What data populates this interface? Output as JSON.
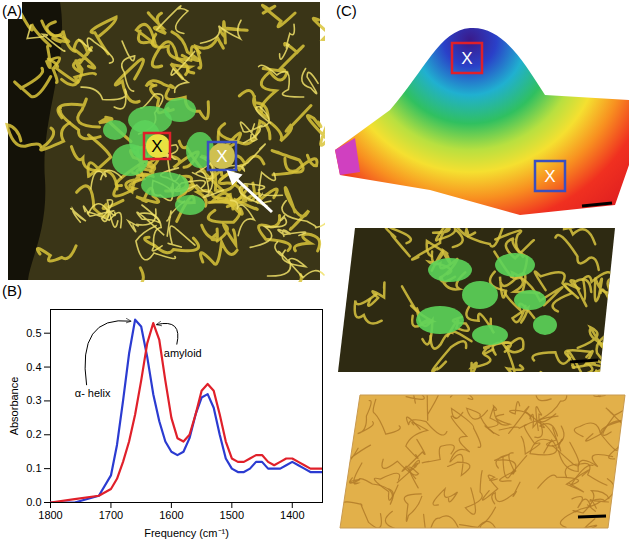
{
  "panel_A": {
    "label": "(A)",
    "markers": [
      {
        "text": "X",
        "color": "#e0202a"
      },
      {
        "text": "X",
        "color": "#3a4fc0"
      }
    ]
  },
  "chart_data": {
    "type": "line",
    "title": "(B)",
    "x_label": "Frequency (cm⁻¹)",
    "y_label": "Absorbance",
    "x": [
      1800,
      1760,
      1720,
      1700,
      1690,
      1680,
      1670,
      1660,
      1650,
      1640,
      1630,
      1620,
      1610,
      1600,
      1590,
      1580,
      1570,
      1560,
      1550,
      1540,
      1530,
      1520,
      1510,
      1500,
      1490,
      1480,
      1470,
      1460,
      1450,
      1440,
      1430,
      1420,
      1410,
      1400,
      1390,
      1380,
      1370,
      1360,
      1350
    ],
    "series": [
      {
        "name": "α- helix",
        "color": "#2b3bd1",
        "values": [
          0,
          0,
          0.02,
          0.08,
          0.17,
          0.3,
          0.44,
          0.54,
          0.52,
          0.43,
          0.32,
          0.24,
          0.18,
          0.15,
          0.14,
          0.15,
          0.19,
          0.26,
          0.31,
          0.32,
          0.28,
          0.2,
          0.13,
          0.1,
          0.09,
          0.09,
          0.1,
          0.12,
          0.12,
          0.1,
          0.1,
          0.1,
          0.11,
          0.12,
          0.11,
          0.1,
          0.09,
          0.09,
          0.09
        ]
      },
      {
        "name": "amyloid",
        "color": "#e0202a",
        "values": [
          0,
          0.01,
          0.02,
          0.04,
          0.07,
          0.12,
          0.18,
          0.26,
          0.36,
          0.47,
          0.53,
          0.48,
          0.36,
          0.25,
          0.19,
          0.18,
          0.2,
          0.26,
          0.33,
          0.35,
          0.33,
          0.26,
          0.18,
          0.13,
          0.12,
          0.12,
          0.13,
          0.14,
          0.14,
          0.12,
          0.11,
          0.12,
          0.13,
          0.13,
          0.12,
          0.11,
          0.1,
          0.1,
          0.1
        ]
      }
    ],
    "xlim": [
      1800,
      1350
    ],
    "xticks": [
      1800,
      1700,
      1600,
      1500,
      1400
    ],
    "ylim": [
      0,
      0.57
    ],
    "yticks": [
      {
        "value": 0,
        "label": "0.0"
      },
      0.1,
      0.2,
      0.3,
      0.4,
      0.5
    ]
  },
  "panel_C": {
    "label": "(C)",
    "markers": [
      {
        "text": "X",
        "color": "#e0202a"
      },
      {
        "text": "X",
        "color": "#3a4fc0"
      }
    ]
  }
}
